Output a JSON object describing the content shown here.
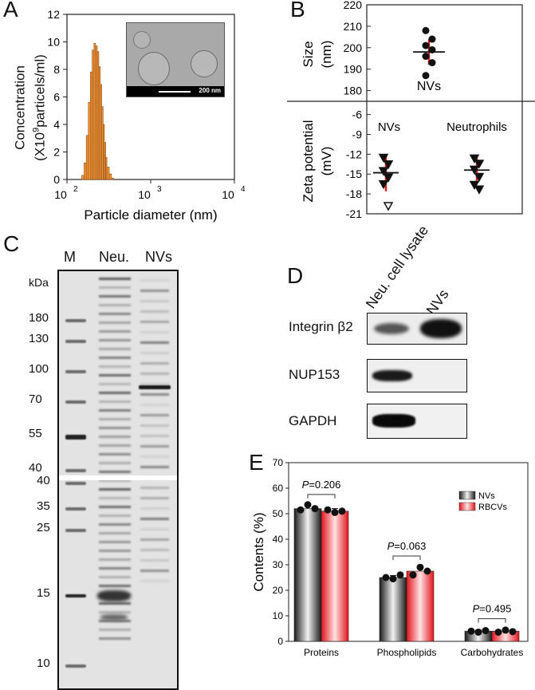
{
  "panels": {
    "a": "A",
    "b": "B",
    "c": "C",
    "d": "D",
    "e": "E"
  },
  "panelA": {
    "ylabel_line1": "Concentration",
    "ylabel_line2_pre": "(X10",
    "ylabel_line2_sup": "9",
    "ylabel_line2_post": "particels/ml)",
    "xlabel": "Particle diameter (nm)",
    "yticks": [
      "0",
      "2",
      "4",
      "6",
      "8",
      "10",
      "12"
    ],
    "xticks": [
      {
        "b": "10",
        "e": "2"
      },
      {
        "b": "10",
        "e": "3"
      },
      {
        "b": "10",
        "e": "4"
      }
    ],
    "scalebar": "200 nm"
  },
  "panelB": {
    "size_label": "Size",
    "size_unit": "(nm)",
    "size_ticks": [
      "180",
      "190",
      "200",
      "210",
      "220"
    ],
    "nvs_label": "NVs",
    "zeta_label": "Zeta potential",
    "zeta_unit": "(mV)",
    "zeta_ticks": [
      "-6",
      "-9",
      "-12",
      "-15",
      "-18",
      "-21"
    ],
    "zeta_groups": [
      "NVs",
      "Neutrophils"
    ]
  },
  "panelC": {
    "lanes": [
      "M",
      "Neu.",
      "NVs"
    ],
    "kda": "kDa",
    "markers_top": [
      "180",
      "130",
      "100",
      "70",
      "55",
      "40"
    ],
    "markers_bottom": [
      "40",
      "35",
      "25",
      "15",
      "10"
    ]
  },
  "panelD": {
    "columns": [
      "Neu. cell lysate",
      "NVs"
    ],
    "rows": [
      "Integrin β2",
      "NUP153",
      "GAPDH"
    ]
  },
  "chart_data": [
    {
      "type": "bar",
      "panel": "A",
      "xscale": "log",
      "xlabel": "Particle diameter (nm)",
      "ylabel": "Concentration (X10^9 particels/ml)",
      "ylim": [
        0,
        12
      ],
      "x": [
        150,
        160,
        170,
        180,
        190,
        200,
        210,
        220,
        230,
        240,
        250,
        260,
        270,
        280,
        290,
        300,
        320,
        340
      ],
      "values": [
        0.3,
        1.2,
        3.2,
        5.6,
        7.8,
        9.4,
        9.9,
        9.7,
        9.3,
        8.2,
        6.9,
        5.3,
        4.0,
        2.7,
        1.6,
        0.9,
        0.4,
        0.1
      ]
    },
    {
      "type": "scatter",
      "panel": "B-top",
      "ylabel": "Size (nm)",
      "ylim": [
        175,
        220
      ],
      "series": [
        {
          "name": "NVs",
          "values": [
            187,
            193,
            196,
            199,
            201,
            204,
            208
          ],
          "mean": 198,
          "sd": 6
        }
      ]
    },
    {
      "type": "scatter",
      "panel": "B-bottom",
      "ylabel": "Zeta potential (mV)",
      "ylim": [
        -21,
        -4
      ],
      "series": [
        {
          "name": "NVs",
          "values": [
            -12.5,
            -13.5,
            -14.5,
            -15.5,
            -16.5,
            -19.8
          ],
          "mean": -14.8,
          "sd": 2.8
        },
        {
          "name": "Neutrophils",
          "values": [
            -12.6,
            -13.4,
            -14.3,
            -15.4,
            -16.6,
            -17.3
          ],
          "mean": -14.4,
          "sd": 1.9
        }
      ]
    },
    {
      "type": "bar",
      "panel": "E",
      "ylabel": "Contents (%)",
      "ylim": [
        0,
        70
      ],
      "categories": [
        "Proteins",
        "Phospholipids",
        "Carbohydrates"
      ],
      "series": [
        {
          "name": "NVs",
          "values": [
            52,
            25,
            4
          ],
          "points": [
            [
              51.5,
              53.5,
              52
            ],
            [
              25,
              24.5,
              26
            ],
            [
              4,
              3.6,
              4.2
            ]
          ],
          "err": [
            1.3,
            0.8,
            0.4
          ]
        },
        {
          "name": "RBCVs",
          "values": [
            51,
            27.5,
            4
          ],
          "points": [
            [
              51.5,
              50.5,
              51
            ],
            [
              26,
              29,
              27.5
            ],
            [
              3.6,
              4.4,
              3.8
            ]
          ],
          "err": [
            1.0,
            1.7,
            0.6
          ]
        }
      ],
      "pvalues": [
        "P=0.206",
        "P=0.063",
        "P=0.495"
      ],
      "yticks": [
        "0",
        "10",
        "20",
        "30",
        "40",
        "50",
        "60",
        "70"
      ],
      "legend": "top-right"
    }
  ]
}
